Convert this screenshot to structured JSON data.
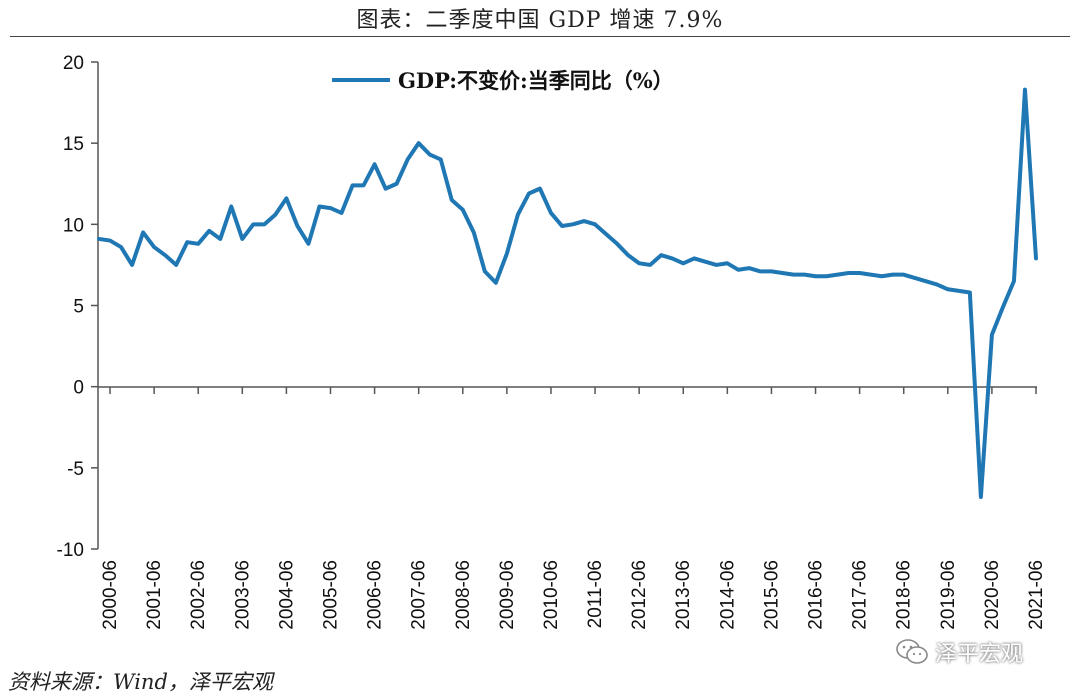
{
  "page": {
    "title": "图表：二季度中国 GDP 增速 7.9%",
    "source": "资料来源：Wind，泽平宏观",
    "watermark": "泽平宏观",
    "watermark_icon": "wechat-icon"
  },
  "colors": {
    "line": "#1f77b4",
    "axis": "#555555"
  },
  "chart_data": {
    "type": "line",
    "title": "图表：二季度中国 GDP 增速 7.9%",
    "xlabel": "",
    "ylabel": "",
    "ylim": [
      -10,
      20
    ],
    "yticks": [
      -10,
      -5,
      0,
      5,
      10,
      15,
      20
    ],
    "grid": false,
    "legend_position": "top-center",
    "xticks": [
      "2000-06",
      "2001-06",
      "2002-06",
      "2003-06",
      "2004-06",
      "2005-06",
      "2006-06",
      "2007-06",
      "2008-06",
      "2009-06",
      "2010-06",
      "2011-06",
      "2012-06",
      "2013-06",
      "2014-06",
      "2015-06",
      "2016-06",
      "2017-06",
      "2018-06",
      "2019-06",
      "2020-06",
      "2021-06"
    ],
    "x": [
      "2000-03",
      "2000-06",
      "2000-09",
      "2000-12",
      "2001-03",
      "2001-06",
      "2001-09",
      "2001-12",
      "2002-03",
      "2002-06",
      "2002-09",
      "2002-12",
      "2003-03",
      "2003-06",
      "2003-09",
      "2003-12",
      "2004-03",
      "2004-06",
      "2004-09",
      "2004-12",
      "2005-03",
      "2005-06",
      "2005-09",
      "2005-12",
      "2006-03",
      "2006-06",
      "2006-09",
      "2006-12",
      "2007-03",
      "2007-06",
      "2007-09",
      "2007-12",
      "2008-03",
      "2008-06",
      "2008-09",
      "2008-12",
      "2009-03",
      "2009-06",
      "2009-09",
      "2009-12",
      "2010-03",
      "2010-06",
      "2010-09",
      "2010-12",
      "2011-03",
      "2011-06",
      "2011-09",
      "2011-12",
      "2012-03",
      "2012-06",
      "2012-09",
      "2012-12",
      "2013-03",
      "2013-06",
      "2013-09",
      "2013-12",
      "2014-03",
      "2014-06",
      "2014-09",
      "2014-12",
      "2015-03",
      "2015-06",
      "2015-09",
      "2015-12",
      "2016-03",
      "2016-06",
      "2016-09",
      "2016-12",
      "2017-03",
      "2017-06",
      "2017-09",
      "2017-12",
      "2018-03",
      "2018-06",
      "2018-09",
      "2018-12",
      "2019-03",
      "2019-06",
      "2019-09",
      "2019-12",
      "2020-03",
      "2020-06",
      "2020-09",
      "2020-12",
      "2021-03",
      "2021-06"
    ],
    "series": [
      {
        "name": "GDP:不变价:当季同比（%）",
        "values": [
          9.1,
          9.0,
          8.6,
          7.5,
          9.5,
          8.6,
          8.1,
          7.5,
          8.9,
          8.8,
          9.6,
          9.1,
          11.1,
          9.1,
          10.0,
          10.0,
          10.6,
          11.6,
          9.9,
          8.8,
          11.1,
          11.0,
          10.7,
          12.4,
          12.4,
          13.7,
          12.2,
          12.5,
          14.0,
          15.0,
          14.3,
          14.0,
          11.5,
          10.9,
          9.5,
          7.1,
          6.4,
          8.2,
          10.6,
          11.9,
          12.2,
          10.7,
          9.9,
          10.0,
          10.2,
          10.0,
          9.4,
          8.8,
          8.1,
          7.6,
          7.5,
          8.1,
          7.9,
          7.6,
          7.9,
          7.7,
          7.5,
          7.6,
          7.2,
          7.3,
          7.1,
          7.1,
          7.0,
          6.9,
          6.9,
          6.8,
          6.8,
          6.9,
          7.0,
          7.0,
          6.9,
          6.8,
          6.9,
          6.9,
          6.7,
          6.5,
          6.3,
          6.0,
          5.9,
          5.8,
          -6.8,
          3.2,
          4.9,
          6.5,
          18.3,
          7.9
        ]
      }
    ]
  }
}
